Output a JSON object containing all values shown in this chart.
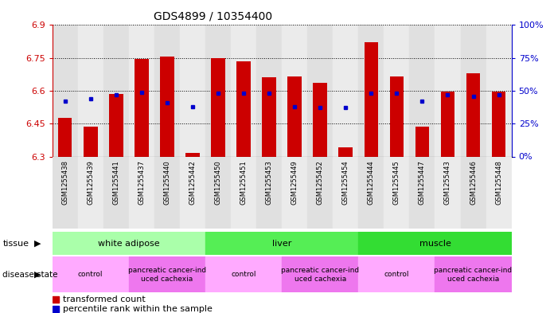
{
  "title": "GDS4899 / 10354400",
  "samples": [
    "GSM1255438",
    "GSM1255439",
    "GSM1255441",
    "GSM1255437",
    "GSM1255440",
    "GSM1255442",
    "GSM1255450",
    "GSM1255451",
    "GSM1255453",
    "GSM1255449",
    "GSM1255452",
    "GSM1255454",
    "GSM1255444",
    "GSM1255445",
    "GSM1255447",
    "GSM1255443",
    "GSM1255446",
    "GSM1255448"
  ],
  "red_values": [
    6.475,
    6.435,
    6.585,
    6.745,
    6.755,
    6.315,
    6.75,
    6.735,
    6.66,
    6.665,
    6.635,
    6.34,
    6.82,
    6.665,
    6.435,
    6.595,
    6.68,
    6.595
  ],
  "blue_percentile": [
    42,
    44,
    47,
    49,
    41,
    38,
    48,
    48,
    48,
    38,
    37,
    37,
    48,
    48,
    42,
    47,
    46,
    47
  ],
  "ymin": 6.3,
  "ymax": 6.9,
  "yticks": [
    6.3,
    6.45,
    6.6,
    6.75,
    6.9
  ],
  "y2ticks": [
    0,
    25,
    50,
    75,
    100
  ],
  "bar_color": "#cc0000",
  "dot_color": "#0000cc",
  "col_bg_even": "#e0e0e0",
  "col_bg_odd": "#ebebeb",
  "tissue_groups": [
    {
      "label": "white adipose",
      "start": 0,
      "end": 6,
      "color": "#aaffaa"
    },
    {
      "label": "liver",
      "start": 6,
      "end": 12,
      "color": "#55ee55"
    },
    {
      "label": "muscle",
      "start": 12,
      "end": 18,
      "color": "#33dd33"
    }
  ],
  "disease_groups": [
    {
      "label": "control",
      "start": 0,
      "end": 3,
      "color": "#ffaaff"
    },
    {
      "label": "pancreatic cancer-ind\nuced cachexia",
      "start": 3,
      "end": 6,
      "color": "#ee77ee"
    },
    {
      "label": "control",
      "start": 6,
      "end": 9,
      "color": "#ffaaff"
    },
    {
      "label": "pancreatic cancer-ind\nuced cachexia",
      "start": 9,
      "end": 12,
      "color": "#ee77ee"
    },
    {
      "label": "control",
      "start": 12,
      "end": 15,
      "color": "#ffaaff"
    },
    {
      "label": "pancreatic cancer-ind\nuced cachexia",
      "start": 15,
      "end": 18,
      "color": "#ee77ee"
    }
  ],
  "bar_width": 0.55,
  "bg_color": "#ffffff",
  "tick_color_left": "#cc0000",
  "tick_color_right": "#0000cc"
}
